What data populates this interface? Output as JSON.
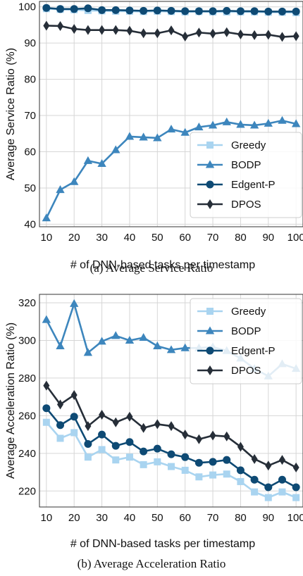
{
  "chart_data": [
    {
      "type": "line",
      "caption": "(a)  Average Service Ratio",
      "xlabel": "# of DNN-based tasks per timestamp",
      "ylabel": "Average Service Ratio (%)",
      "x": [
        10,
        15,
        20,
        25,
        30,
        35,
        40,
        45,
        50,
        55,
        60,
        65,
        70,
        75,
        80,
        85,
        90,
        95,
        100
      ],
      "xticks": [
        10,
        20,
        30,
        40,
        50,
        60,
        70,
        80,
        90,
        100
      ],
      "yticks": [
        40,
        50,
        60,
        70,
        80,
        90,
        100
      ],
      "xlim": [
        7.5,
        102.5
      ],
      "ylim": [
        39.3,
        101.5
      ],
      "grid": true,
      "legend_position": "lower-right",
      "series": [
        {
          "name": "Greedy",
          "color": "#a9d4f0",
          "marker": "square",
          "values": [
            99.5,
            99.3,
            99.2,
            99.0,
            98.9,
            98.8,
            98.8,
            98.7,
            98.8,
            98.7,
            98.6,
            98.7,
            98.6,
            98.6,
            98.6,
            98.6,
            98.5,
            98.5,
            98.4
          ]
        },
        {
          "name": "BODP",
          "color": "#3d86bd",
          "marker": "triangle",
          "values": [
            41.7,
            49.5,
            51.7,
            57.5,
            56.7,
            60.5,
            64.2,
            64.0,
            63.8,
            66.2,
            65.3,
            66.8,
            67.3,
            68.2,
            67.5,
            67.3,
            67.8,
            68.6,
            67.7
          ]
        },
        {
          "name": "Edgent-P",
          "color": "#0e4a74",
          "marker": "circle",
          "values": [
            99.7,
            99.4,
            99.4,
            99.6,
            99.1,
            99.1,
            99.0,
            98.9,
            99.0,
            98.9,
            98.8,
            98.8,
            98.8,
            98.9,
            98.8,
            98.8,
            98.7,
            98.7,
            98.7
          ]
        },
        {
          "name": "DPOS",
          "color": "#262e38",
          "marker": "diamond",
          "values": [
            94.8,
            94.7,
            93.9,
            93.6,
            93.6,
            93.6,
            93.4,
            92.7,
            92.7,
            93.5,
            91.8,
            92.9,
            92.6,
            93.0,
            92.4,
            92.2,
            92.3,
            91.7,
            91.9
          ]
        }
      ]
    },
    {
      "type": "line",
      "caption": "(b)  Average Acceleration Ratio",
      "xlabel": "# of DNN-based tasks per timestamp",
      "ylabel": "Average Acceleration Ratio (%)",
      "x": [
        10,
        15,
        20,
        25,
        30,
        35,
        40,
        45,
        50,
        55,
        60,
        65,
        70,
        75,
        80,
        85,
        90,
        95,
        100
      ],
      "xticks": [
        10,
        20,
        30,
        40,
        50,
        60,
        70,
        80,
        90,
        100
      ],
      "yticks": [
        220,
        240,
        260,
        280,
        300,
        320
      ],
      "xlim": [
        7.5,
        102.5
      ],
      "ylim": [
        211.5,
        324.5
      ],
      "grid": true,
      "legend_position": "upper-right",
      "series": [
        {
          "name": "Greedy",
          "color": "#a9d4f0",
          "marker": "square",
          "values": [
            256.5,
            248.0,
            251.0,
            238.0,
            242.0,
            236.5,
            238.0,
            234.0,
            235.5,
            233.0,
            231.0,
            227.5,
            228.5,
            229.0,
            225.0,
            219.5,
            216.5,
            219.5,
            216.5
          ]
        },
        {
          "name": "BODP",
          "color": "#3d86bd",
          "marker": "triangle",
          "values": [
            311.0,
            297.0,
            319.5,
            293.5,
            299.5,
            302.5,
            300.0,
            301.5,
            297.0,
            295.0,
            296.0,
            296.0,
            296.5,
            294.5,
            290.5,
            285.0,
            281.0,
            287.5,
            285.0
          ]
        },
        {
          "name": "Edgent-P",
          "color": "#0e4a74",
          "marker": "circle",
          "values": [
            264.0,
            255.0,
            259.5,
            245.0,
            250.0,
            244.0,
            246.0,
            241.0,
            242.5,
            239.5,
            238.0,
            235.0,
            235.5,
            236.5,
            231.0,
            226.0,
            222.0,
            226.0,
            222.0
          ]
        },
        {
          "name": "DPOS",
          "color": "#262e38",
          "marker": "diamond",
          "values": [
            276.0,
            266.0,
            271.0,
            254.5,
            260.5,
            256.5,
            259.5,
            253.5,
            255.5,
            254.5,
            250.0,
            247.5,
            249.5,
            249.0,
            243.5,
            237.0,
            233.5,
            236.5,
            232.5
          ]
        }
      ]
    }
  ]
}
